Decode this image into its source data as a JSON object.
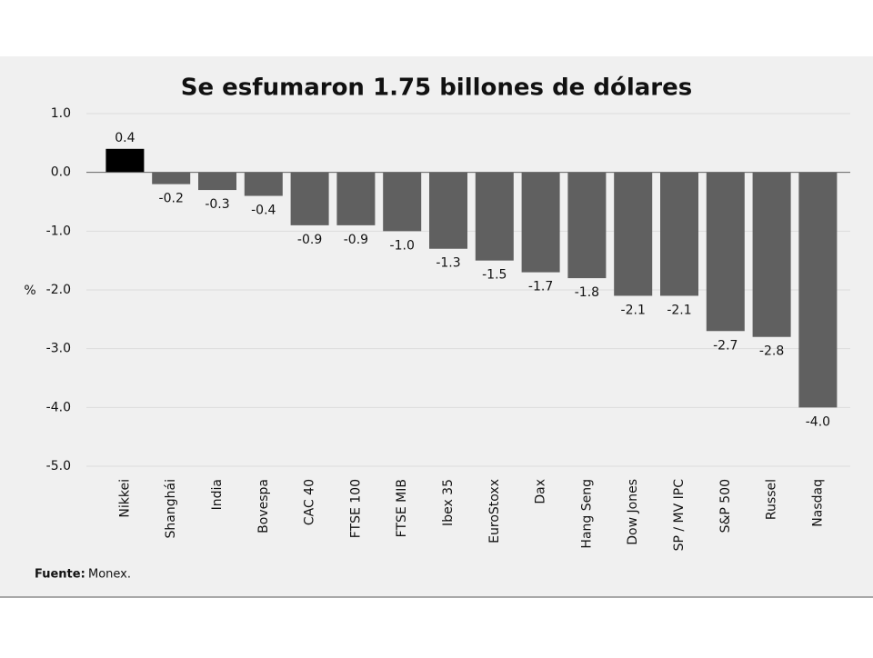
{
  "chart_data": {
    "type": "bar",
    "title": "Se esfumaron 1.75 billones de dólares",
    "y_label": "%",
    "categories": [
      "Nikkei",
      "Shanghái",
      "India",
      "Bovespa",
      "CAC 40",
      "FTSE 100",
      "FTSE MIB",
      "Ibex 35",
      "EuroStoxx",
      "Dax",
      "Hang Seng",
      "Dow Jones",
      "SP / MV IPC",
      "S&P 500",
      "Russel",
      "Nasdaq"
    ],
    "values": [
      0.4,
      -0.2,
      -0.3,
      -0.4,
      -0.9,
      -0.9,
      -1.0,
      -1.3,
      -1.5,
      -1.7,
      -1.8,
      -2.1,
      -2.1,
      -2.7,
      -2.8,
      -4.0
    ],
    "value_labels": [
      "0.4",
      "-0.2",
      "-0.3",
      "-0.4",
      "-0.9",
      "-0.9",
      "-1.0",
      "-1.3",
      "-1.5",
      "-1.7",
      "-1.8",
      "-2.1",
      "-2.1",
      "-2.7",
      "-2.8",
      "-4.0"
    ],
    "colors": [
      "#000000",
      "#606060",
      "#606060",
      "#606060",
      "#606060",
      "#606060",
      "#606060",
      "#606060",
      "#606060",
      "#606060",
      "#606060",
      "#606060",
      "#606060",
      "#606060",
      "#606060",
      "#606060"
    ],
    "ylim": [
      -5,
      1
    ],
    "yticks": [
      {
        "value": 1,
        "label": "1.0"
      },
      {
        "value": 0,
        "label": "0.0"
      },
      {
        "value": -1,
        "label": "-1.0"
      },
      {
        "value": -2,
        "label": "-2.0"
      },
      {
        "value": -3,
        "label": "-3.0"
      },
      {
        "value": -4,
        "label": "-4.0"
      },
      {
        "value": -5,
        "label": "-5.0"
      }
    ],
    "grid": true,
    "source_label": "Fuente:",
    "source": "Monex."
  }
}
